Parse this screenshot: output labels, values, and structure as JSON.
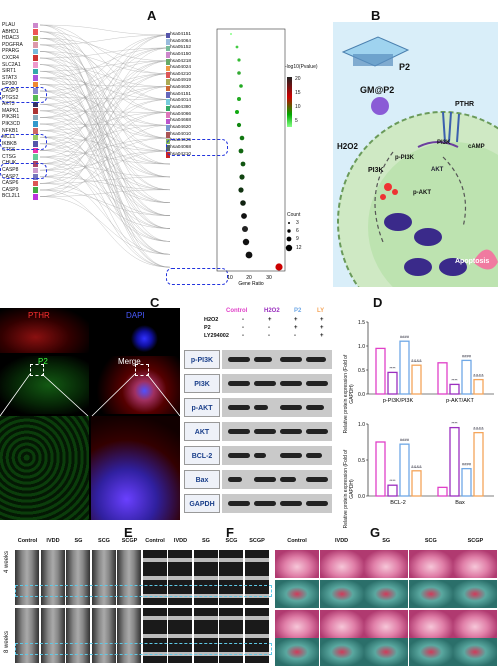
{
  "panels": {
    "A": "A",
    "B": "B",
    "C": "C",
    "D": "D",
    "E": "E",
    "F": "F",
    "G": "G"
  },
  "panelA": {
    "genes": [
      "PLAU",
      "ABHD1",
      "HDAC3",
      "PDGFRA",
      "PPARG",
      "CXCR4",
      "SLC2A1",
      "SIRT1",
      "STAT3",
      "EP300",
      "CASP3",
      "PTGS2",
      "AKT3",
      "MAPK1",
      "PIK3R1",
      "PIK3CD",
      "NFKB1",
      "MCL1",
      "IKBKB",
      "CTSS",
      "CTSG",
      "CHUK",
      "CASP8",
      "CASP7",
      "CASP6",
      "CASP9",
      "BCL2L1"
    ],
    "pathways": [
      "hsa04151",
      "hsa04064",
      "hsa05152",
      "hsa04150",
      "hsa04218",
      "hsa04024",
      "hsa04210",
      "hsa04919",
      "hsa04630",
      "hsa04151",
      "hsa04014",
      "hsa04380",
      "hsa04066",
      "hsa04668",
      "hsa04620",
      "hsa04010",
      "hsa04625",
      "hsa04068",
      "hsa04210"
    ],
    "legend_title": "-log10(Pvalue)",
    "legend_ticks": [
      "20",
      "15",
      "10",
      "5"
    ],
    "count_title": "Count",
    "count_items": [
      "3",
      "6",
      "9",
      "12"
    ],
    "xlabel": "Gene Ratio",
    "xticks": [
      "10",
      "20",
      "30"
    ]
  },
  "panelB": {
    "labels": {
      "p2": "P2",
      "gm": "GM@P2",
      "pthr": "PTHR",
      "h2o2": "H2O2",
      "ppi3k": "p-PI3K",
      "pi3k_top": "PI3K",
      "camp": "cAMP",
      "akt": "AKT",
      "pi3k": "PI3K",
      "pakt": "p-AKT",
      "apoptosis": "Apoptosis"
    }
  },
  "panelC": {
    "pthr": "PTHR",
    "dapi": "DAPI",
    "p2": "P2",
    "merge": "Merge",
    "groups": [
      "Control",
      "H2O2",
      "P2",
      "LY"
    ],
    "conditions": [
      {
        "label": "H2O2",
        "marks": [
          "-",
          "+",
          "+",
          "+"
        ]
      },
      {
        "label": "P2",
        "marks": [
          "-",
          "-",
          "+",
          "+"
        ]
      },
      {
        "label": "LY294002",
        "marks": [
          "-",
          "-",
          "-",
          "+"
        ]
      }
    ],
    "blots": [
      "p-PI3K",
      "PI3K",
      "p-AKT",
      "AKT",
      "BCL-2",
      "Bax",
      "GAPDH"
    ]
  },
  "panelD": {
    "ylabel": "Relative protein expression (Fold of GAPDH)",
    "top": {
      "categories": [
        "p-PI3K/PI3K",
        "p-AKT/AKT"
      ],
      "yticks": [
        "0.0",
        "0.5",
        "1.0",
        "1.5"
      ],
      "ylim": [
        0,
        1.5
      ],
      "series": [
        {
          "values": [
            0.95,
            0.65
          ],
          "color": "#e040c8"
        },
        {
          "values": [
            0.45,
            0.2
          ],
          "color": "#9b2fbf"
        },
        {
          "values": [
            1.1,
            0.7
          ],
          "color": "#6fa8e6"
        },
        {
          "values": [
            0.6,
            0.3
          ],
          "color": "#f5a55a"
        }
      ],
      "sig": [
        "****",
        "####",
        "&&&&",
        "****",
        "####",
        "&&&&"
      ]
    },
    "bottom": {
      "categories": [
        "BCL-2",
        "Bax"
      ],
      "yticks": [
        "0.0",
        "0.5",
        "1.0"
      ],
      "ylim": [
        0,
        1.0
      ],
      "series": [
        {
          "values": [
            0.75,
            0.12
          ],
          "color": "#e040c8"
        },
        {
          "values": [
            0.15,
            0.95
          ],
          "color": "#9b2fbf"
        },
        {
          "values": [
            0.72,
            0.38
          ],
          "color": "#6fa8e6"
        },
        {
          "values": [
            0.35,
            0.88
          ],
          "color": "#f5a55a"
        }
      ],
      "sig": [
        "****",
        "####",
        "&&&&",
        "****",
        "####",
        "&&&&"
      ]
    }
  },
  "panelEF": {
    "groups": [
      "Control",
      "IVDD",
      "SG",
      "SCG",
      "SCGP"
    ],
    "rows": [
      "4 weeks",
      "8 weeks"
    ]
  }
}
